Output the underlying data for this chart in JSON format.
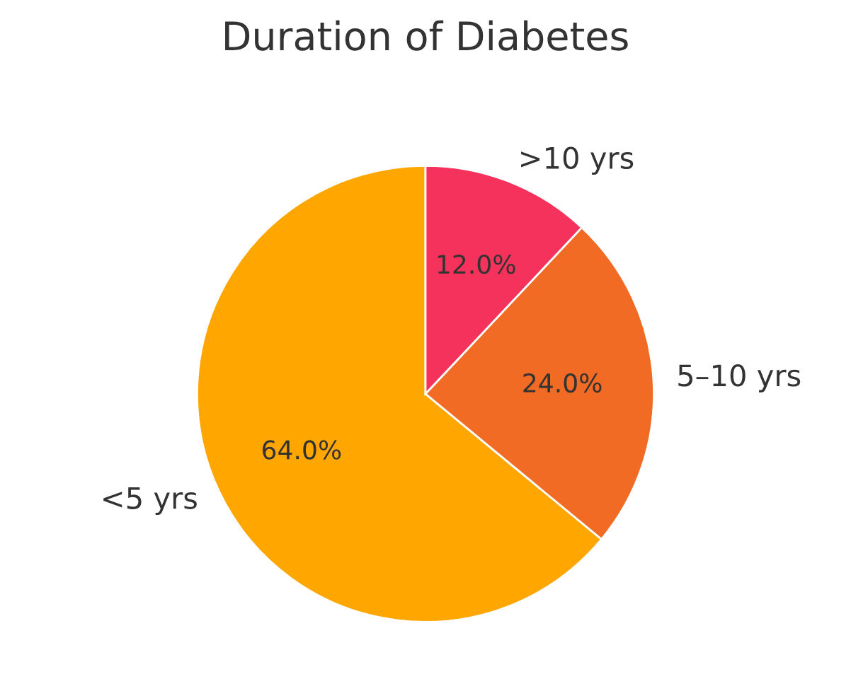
{
  "chart_data": {
    "type": "pie",
    "title": "Duration of Diabetes",
    "categories": [
      "<5 yrs",
      "5–10 yrs",
      ">10 yrs"
    ],
    "values": [
      64.0,
      24.0,
      12.0
    ],
    "colors": [
      "#ffa600",
      "#f26b24",
      "#f5325b"
    ],
    "value_labels": [
      "64.0%",
      "24.0%",
      "12.0%"
    ],
    "legend": false
  }
}
